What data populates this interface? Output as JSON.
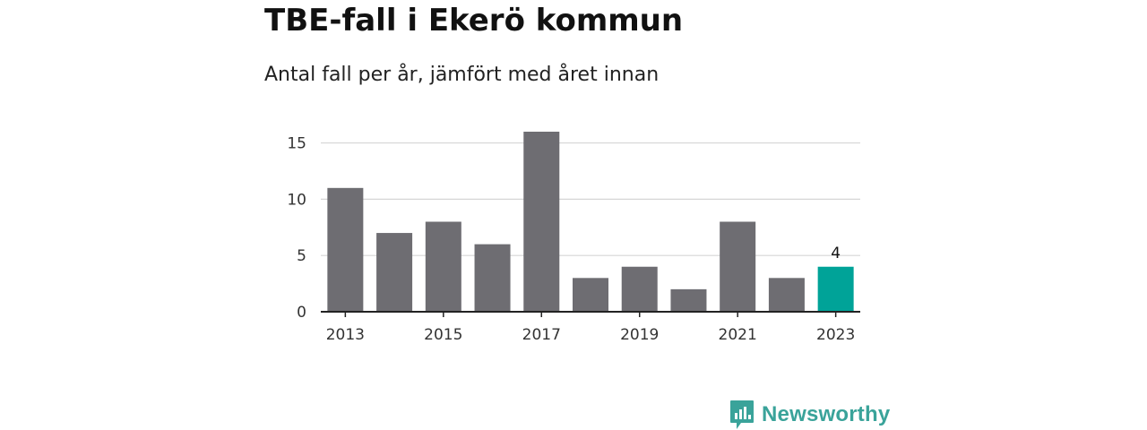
{
  "chart_data": {
    "type": "bar",
    "title": "TBE-fall i Ekerö kommun",
    "subtitle": "Antal fall per år, jämfört med året innan",
    "categories": [
      "2013",
      "2014",
      "2015",
      "2016",
      "2017",
      "2018",
      "2019",
      "2020",
      "2021",
      "2022",
      "2023"
    ],
    "x_tick_labels": [
      "2013",
      "2015",
      "2017",
      "2019",
      "2021",
      "2023"
    ],
    "values": [
      11,
      7,
      8,
      6,
      16,
      3,
      4,
      2,
      8,
      3,
      4
    ],
    "y_ticks": [
      0,
      5,
      10,
      15
    ],
    "ylim": [
      0,
      16
    ],
    "grid": true,
    "highlight_index": 10,
    "highlight_label": "4",
    "xlabel": "",
    "ylabel": ""
  },
  "colors": {
    "bar": "#6e6d72",
    "highlight": "#00a398",
    "grid": "#d6d6d6",
    "axis": "#222222",
    "brand": "#3aa39a"
  },
  "brand": {
    "name": "Newsworthy",
    "icon": "bar-chart-speech-bubble-icon"
  }
}
